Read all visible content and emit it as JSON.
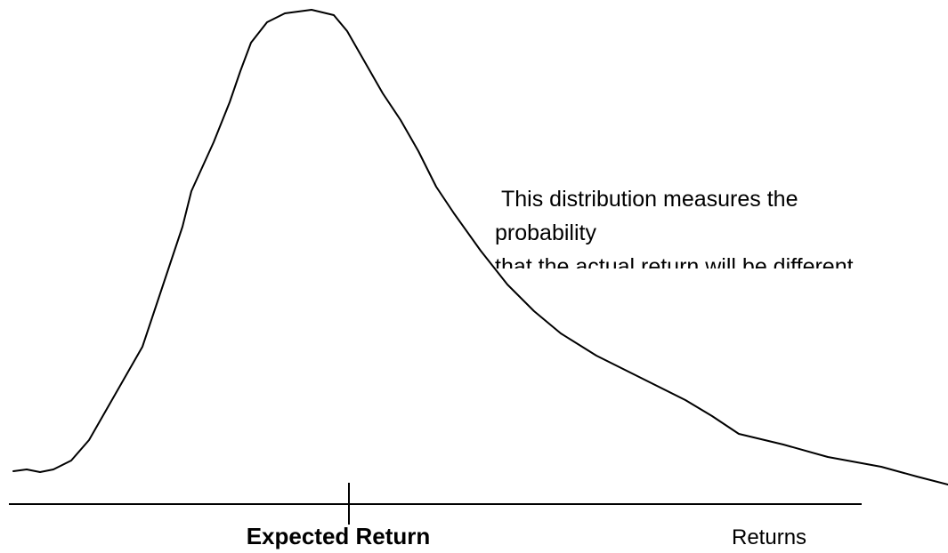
{
  "annotation": {
    "lines": [
      "This distribution measures the",
      "probability",
      "that the actual return will be different"
    ]
  },
  "axis": {
    "center_label": "Expected Return",
    "end_label": "Returns"
  }
}
